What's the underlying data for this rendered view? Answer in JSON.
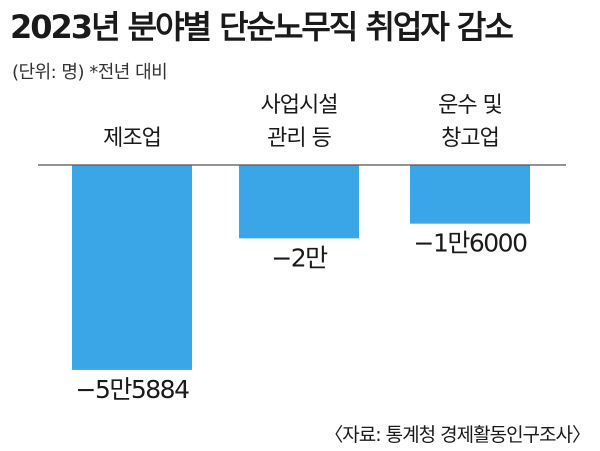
{
  "header": {
    "title": "2023년 분야별 단순노무직 취업자 감소",
    "subtitle": "(단위: 명)  *전년 대비"
  },
  "footer": {
    "source": "〈자료: 통계청 경제활동인구조사〉"
  },
  "colors": {
    "bar": "#3aa6e8",
    "axis": "#555555"
  },
  "chart_data": {
    "type": "bar",
    "categories": [
      [
        "제조업"
      ],
      [
        "사업시설",
        "관리 등"
      ],
      [
        "운수 및",
        "창고업"
      ]
    ],
    "values": [
      -55884,
      -20000,
      -16000
    ],
    "value_labels": [
      "−5만5884",
      "−2만",
      "−1만6000"
    ],
    "ylim": [
      -60000,
      0
    ],
    "grid": false,
    "legend": "none"
  }
}
